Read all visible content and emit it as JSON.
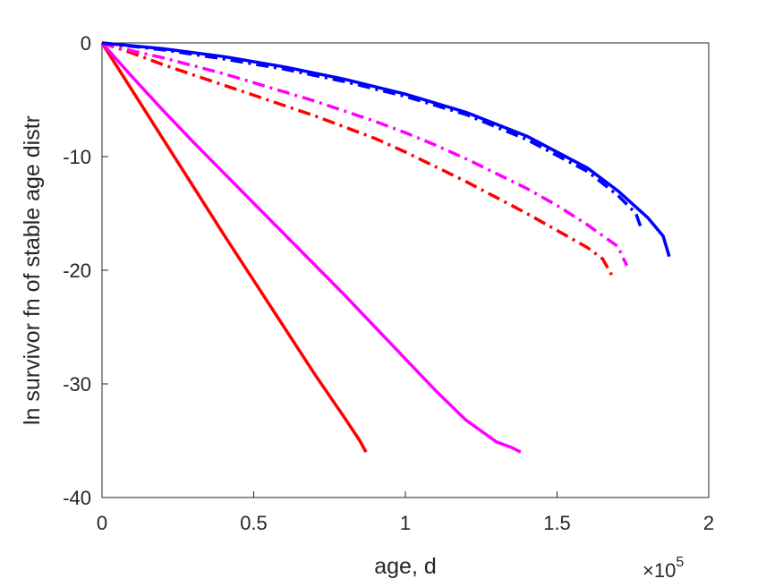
{
  "chart_data": {
    "type": "line",
    "title": "",
    "xlabel": "age, d",
    "ylabel": "ln survivor fn of stable age distr",
    "x_multiplier": {
      "base": "×10",
      "exponent": "5"
    },
    "xlim": [
      0,
      2
    ],
    "ylim": [
      -40,
      0
    ],
    "xticks": [
      0,
      0.5,
      1,
      1.5,
      2
    ],
    "xtick_labels": [
      "0",
      "0.5",
      "1",
      "1.5",
      "2"
    ],
    "yticks": [
      0,
      -10,
      -20,
      -30,
      -40
    ],
    "ytick_labels": [
      "0",
      "-10",
      "-20",
      "-30",
      "-40"
    ],
    "grid": false,
    "legend": "none",
    "series": [
      {
        "color": "#ff0000",
        "style": "solid",
        "points": [
          [
            0,
            0
          ],
          [
            0.1,
            -4.2
          ],
          [
            0.2,
            -8.4
          ],
          [
            0.3,
            -12.6
          ],
          [
            0.4,
            -16.8
          ],
          [
            0.5,
            -20.9
          ],
          [
            0.6,
            -25.0
          ],
          [
            0.7,
            -29.1
          ],
          [
            0.8,
            -33.0
          ],
          [
            0.85,
            -35.0
          ],
          [
            0.87,
            -36.0
          ]
        ]
      },
      {
        "color": "#ff00ff",
        "style": "solid",
        "points": [
          [
            0,
            0
          ],
          [
            0.1,
            -3.0
          ],
          [
            0.2,
            -5.9
          ],
          [
            0.3,
            -8.7
          ],
          [
            0.4,
            -11.4
          ],
          [
            0.5,
            -14.1
          ],
          [
            0.6,
            -16.8
          ],
          [
            0.7,
            -19.5
          ],
          [
            0.8,
            -22.2
          ],
          [
            0.9,
            -25.0
          ],
          [
            1.0,
            -27.8
          ],
          [
            1.1,
            -30.6
          ],
          [
            1.2,
            -33.2
          ],
          [
            1.3,
            -35.1
          ],
          [
            1.35,
            -35.6
          ],
          [
            1.38,
            -36.0
          ]
        ]
      },
      {
        "color": "#ff0000",
        "style": "dashdot",
        "points": [
          [
            0,
            0
          ],
          [
            0.1,
            -0.9
          ],
          [
            0.2,
            -1.9
          ],
          [
            0.3,
            -2.8
          ],
          [
            0.4,
            -3.7
          ],
          [
            0.5,
            -4.6
          ],
          [
            0.6,
            -5.5
          ],
          [
            0.7,
            -6.4
          ],
          [
            0.8,
            -7.4
          ],
          [
            0.9,
            -8.4
          ],
          [
            1.0,
            -9.6
          ],
          [
            1.1,
            -10.9
          ],
          [
            1.2,
            -12.2
          ],
          [
            1.3,
            -13.6
          ],
          [
            1.4,
            -15.0
          ],
          [
            1.5,
            -16.5
          ],
          [
            1.6,
            -18.0
          ],
          [
            1.65,
            -19.0
          ],
          [
            1.68,
            -20.4
          ]
        ]
      },
      {
        "color": "#ff00ff",
        "style": "dashdot",
        "points": [
          [
            0,
            0
          ],
          [
            0.1,
            -0.7
          ],
          [
            0.2,
            -1.3
          ],
          [
            0.3,
            -2.0
          ],
          [
            0.4,
            -2.7
          ],
          [
            0.5,
            -3.5
          ],
          [
            0.6,
            -4.3
          ],
          [
            0.7,
            -5.1
          ],
          [
            0.8,
            -6.0
          ],
          [
            0.9,
            -6.9
          ],
          [
            1.0,
            -7.9
          ],
          [
            1.1,
            -9.0
          ],
          [
            1.2,
            -10.2
          ],
          [
            1.3,
            -11.5
          ],
          [
            1.4,
            -12.8
          ],
          [
            1.5,
            -14.3
          ],
          [
            1.6,
            -16.0
          ],
          [
            1.7,
            -17.9
          ],
          [
            1.73,
            -19.6
          ]
        ]
      },
      {
        "color": "#0000ff",
        "style": "dashdot",
        "points": [
          [
            0,
            0
          ],
          [
            0.2,
            -0.6
          ],
          [
            0.4,
            -1.4
          ],
          [
            0.6,
            -2.3
          ],
          [
            0.8,
            -3.4
          ],
          [
            1.0,
            -4.7
          ],
          [
            1.2,
            -6.3
          ],
          [
            1.4,
            -8.5
          ],
          [
            1.6,
            -11.3
          ],
          [
            1.7,
            -13.4
          ],
          [
            1.76,
            -15.0
          ],
          [
            1.78,
            -16.5
          ]
        ]
      },
      {
        "color": "#0000ff",
        "style": "solid",
        "points": [
          [
            0,
            0
          ],
          [
            0.2,
            -0.5
          ],
          [
            0.4,
            -1.2
          ],
          [
            0.6,
            -2.1
          ],
          [
            0.8,
            -3.2
          ],
          [
            1.0,
            -4.5
          ],
          [
            1.2,
            -6.1
          ],
          [
            1.4,
            -8.2
          ],
          [
            1.6,
            -11.0
          ],
          [
            1.7,
            -13.0
          ],
          [
            1.8,
            -15.4
          ],
          [
            1.85,
            -17.0
          ],
          [
            1.87,
            -18.8
          ]
        ]
      }
    ]
  }
}
